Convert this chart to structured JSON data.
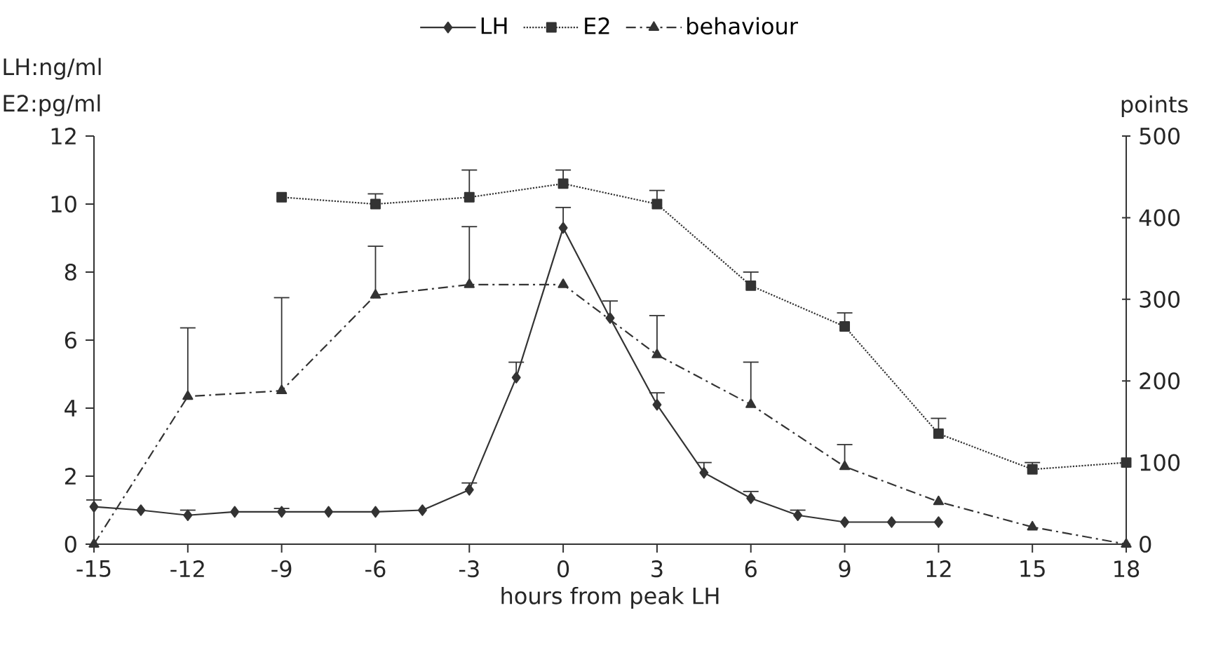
{
  "chart_data": {
    "type": "line",
    "xlabel": "hours from peak LH",
    "ylabel": "LH:ng/ml E2:pg/ml",
    "y2label": "points",
    "xlim": [
      -15,
      18
    ],
    "xticks": [
      -15,
      -12,
      -9,
      -6,
      -3,
      0,
      3,
      6,
      9,
      12,
      15,
      18
    ],
    "ylim": [
      0,
      12
    ],
    "yticks": [
      0,
      2,
      4,
      6,
      8,
      10,
      12
    ],
    "y2lim": [
      0,
      500
    ],
    "y2ticks": [
      0,
      100,
      200,
      300,
      400,
      500
    ],
    "legend": "top",
    "series": [
      {
        "name": "LH",
        "color": "#333333",
        "marker": "diamond",
        "line_style": "solid",
        "x": [
          -15,
          -13.5,
          -12,
          -10.5,
          -9,
          -7.5,
          -6,
          -4.5,
          -3,
          -1.5,
          0,
          1.5,
          3,
          4.5,
          6,
          7.5,
          9,
          10.5,
          12
        ],
        "values": [
          1.1,
          1.0,
          0.85,
          0.95,
          0.95,
          0.95,
          0.95,
          1.0,
          1.6,
          4.9,
          9.3,
          6.65,
          4.1,
          2.1,
          1.35,
          0.85,
          0.65,
          0.65,
          0.65
        ],
        "errors": [
          [
            1.1,
            1.3
          ],
          null,
          [
            0.85,
            1.0
          ],
          null,
          [
            0.95,
            1.05
          ],
          null,
          null,
          null,
          [
            1.6,
            1.8
          ],
          [
            4.9,
            5.35
          ],
          [
            9.3,
            9.9
          ],
          [
            6.65,
            7.15
          ],
          [
            4.1,
            4.45
          ],
          [
            2.1,
            2.4
          ],
          [
            1.35,
            1.55
          ],
          [
            0.85,
            1.0
          ],
          null,
          null,
          null
        ]
      },
      {
        "name": "E2",
        "color": "#333333",
        "marker": "square",
        "line_style": "dotted",
        "x": [
          -9,
          -6,
          -3,
          0,
          3,
          6,
          9,
          12,
          15,
          18
        ],
        "values": [
          10.2,
          10.0,
          10.2,
          10.6,
          10.0,
          7.6,
          6.4,
          3.25,
          2.2,
          2.4
        ],
        "errors": [
          null,
          [
            10.0,
            10.3
          ],
          [
            10.2,
            11.0
          ],
          [
            10.6,
            11.0
          ],
          [
            10.0,
            10.4
          ],
          [
            7.6,
            8.0
          ],
          [
            6.4,
            6.8
          ],
          [
            3.25,
            3.7
          ],
          [
            2.2,
            2.4
          ],
          null
        ]
      },
      {
        "name": "behaviour",
        "color": "#333333",
        "marker": "triangle",
        "line_style": "dashed",
        "axis": "y2",
        "x": [
          -15,
          -12,
          -9,
          -6,
          -3,
          0,
          3,
          6,
          9,
          12,
          15,
          18
        ],
        "values": [
          0,
          181,
          188,
          305,
          318,
          318,
          232,
          171,
          95,
          52,
          21,
          0
        ],
        "errors": [
          null,
          [
            181,
            265
          ],
          [
            188,
            302
          ],
          [
            305,
            365
          ],
          [
            318,
            389
          ],
          null,
          [
            232,
            280
          ],
          [
            171,
            223
          ],
          [
            95,
            122
          ],
          null,
          null,
          null
        ]
      }
    ]
  }
}
